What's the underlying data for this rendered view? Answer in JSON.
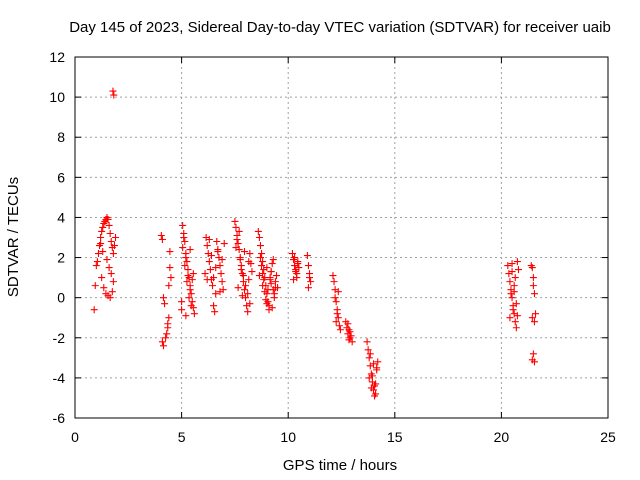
{
  "chart_data": {
    "type": "scatter",
    "title": "Day 145 of 2023, Sidereal Day-to-day VTEC variation (SDTVAR) for receiver uaib",
    "xlabel": "GPS time / hours",
    "ylabel": "SDTVAR / TECUs",
    "xlim": [
      0,
      25
    ],
    "ylim": [
      -6,
      12
    ],
    "xticks": [
      "0",
      "5",
      "10",
      "15",
      "20",
      "25"
    ],
    "yticks": [
      "-6",
      "-4",
      "-2",
      "0",
      "2",
      "4",
      "6",
      "8",
      "10",
      "12"
    ],
    "grid": true,
    "marker": "+",
    "color": "#ff0000",
    "series": [
      {
        "name": "SDTVAR",
        "x": [
          0.9,
          0.95,
          1.0,
          1.05,
          1.1,
          1.15,
          1.2,
          1.25,
          1.3,
          1.35,
          1.4,
          1.45,
          1.5,
          1.55,
          1.6,
          1.65,
          1.7,
          1.75,
          1.8,
          1.85,
          1.9,
          1.25,
          1.35,
          1.45,
          1.55,
          1.65,
          1.75,
          1.2,
          1.3,
          1.5,
          1.6,
          1.7,
          1.8,
          1.78,
          1.82,
          4.05,
          4.1,
          4.15,
          4.2,
          4.1,
          4.15,
          4.25,
          4.35,
          4.4,
          4.45,
          4.5,
          4.4,
          4.3,
          4.35,
          4.45,
          5.0,
          5.05,
          5.1,
          5.15,
          5.2,
          5.25,
          5.3,
          5.35,
          5.4,
          5.45,
          5.5,
          5.55,
          5.6,
          5.05,
          5.15,
          5.25,
          5.35,
          5.45,
          5.55,
          5.1,
          5.2,
          5.3,
          5.4,
          5.5,
          5.0,
          5.2,
          5.4,
          6.1,
          6.15,
          6.2,
          6.25,
          6.3,
          6.35,
          6.4,
          6.45,
          6.5,
          6.55,
          6.6,
          6.65,
          6.7,
          6.75,
          6.8,
          6.85,
          6.9,
          6.95,
          7.0,
          6.2,
          6.4,
          6.6,
          6.8,
          6.3,
          6.5,
          6.7,
          6.9,
          7.5,
          7.55,
          7.6,
          7.65,
          7.7,
          7.75,
          7.8,
          7.85,
          7.9,
          7.95,
          8.0,
          8.05,
          8.1,
          8.15,
          8.2,
          8.25,
          8.3,
          7.6,
          7.8,
          8.0,
          8.2,
          7.7,
          7.9,
          8.1,
          7.55,
          7.75,
          7.95,
          8.15,
          7.65,
          7.85,
          8.6,
          8.65,
          8.7,
          8.75,
          8.8,
          8.85,
          8.9,
          8.95,
          9.0,
          9.05,
          9.1,
          9.15,
          9.2,
          9.25,
          9.3,
          9.35,
          9.4,
          9.45,
          9.5,
          8.7,
          8.8,
          8.9,
          9.0,
          9.1,
          9.2,
          9.3,
          8.75,
          8.85,
          8.95,
          9.05,
          9.15,
          9.25,
          9.35,
          8.65,
          8.8,
          9.0,
          9.2,
          9.4,
          10.2,
          10.25,
          10.3,
          10.35,
          10.4,
          10.45,
          10.5,
          10.3,
          10.4,
          10.25,
          10.35,
          10.45,
          10.9,
          10.95,
          11.0,
          11.05,
          10.95,
          11.0,
          12.1,
          12.15,
          12.2,
          12.25,
          12.3,
          12.35,
          12.4,
          12.45,
          12.2,
          12.3,
          12.25,
          12.35,
          12.7,
          12.75,
          12.8,
          12.85,
          12.9,
          12.95,
          13.0,
          12.8,
          12.9,
          12.85,
          13.7,
          13.75,
          13.8,
          13.85,
          13.9,
          13.95,
          14.0,
          14.05,
          14.1,
          14.15,
          14.2,
          13.8,
          13.9,
          14.0,
          14.1,
          13.85,
          13.95,
          14.05,
          14.15,
          20.3,
          20.35,
          20.4,
          20.45,
          20.5,
          20.55,
          20.6,
          20.65,
          20.7,
          20.75,
          20.8,
          20.4,
          20.5,
          20.6,
          20.7,
          20.45,
          20.55,
          20.65,
          20.75,
          20.5,
          20.6,
          21.4,
          21.45,
          21.5,
          21.55,
          21.6,
          21.45,
          21.55,
          21.5,
          21.45,
          21.55,
          21.5
        ],
        "y": [
          -0.6,
          0.6,
          1.6,
          1.8,
          2.2,
          2.6,
          3.0,
          3.3,
          3.5,
          3.7,
          3.8,
          3.9,
          4.0,
          3.9,
          3.6,
          3.2,
          2.8,
          2.5,
          2.2,
          2.6,
          3.0,
          1.0,
          0.5,
          0.2,
          0.1,
          0.0,
          0.3,
          2.7,
          2.3,
          1.9,
          1.5,
          1.2,
          0.8,
          10.3,
          10.1,
          3.1,
          2.9,
          0.0,
          -0.3,
          -2.2,
          -2.4,
          -2.0,
          -1.5,
          -1.0,
          2.3,
          1.0,
          0.6,
          -1.8,
          -1.3,
          1.5,
          -0.6,
          3.6,
          3.2,
          2.8,
          2.2,
          1.8,
          1.4,
          1.0,
          0.6,
          0.2,
          -0.2,
          -0.5,
          -0.8,
          2.5,
          1.6,
          0.8,
          0.0,
          -0.4,
          1.2,
          3.0,
          2.0,
          1.1,
          0.4,
          0.9,
          -0.2,
          -0.9,
          2.4,
          1.2,
          3.0,
          2.6,
          2.2,
          1.8,
          1.4,
          0.9,
          0.6,
          -0.4,
          -0.7,
          0.2,
          2.8,
          2.4,
          2.0,
          1.6,
          1.2,
          0.8,
          0.4,
          2.7,
          0.9,
          2.1,
          1.5,
          0.3,
          2.9,
          1.0,
          2.3,
          1.9,
          3.8,
          3.5,
          3.1,
          2.7,
          2.4,
          2.0,
          1.6,
          1.2,
          0.8,
          0.4,
          0.0,
          -0.4,
          -0.7,
          0.9,
          2.2,
          1.7,
          1.3,
          2.9,
          1.4,
          0.6,
          -0.3,
          3.3,
          1.1,
          0.2,
          2.5,
          1.9,
          2.3,
          1.8,
          0.5,
          0.1,
          3.3,
          3.0,
          2.6,
          2.2,
          1.8,
          1.4,
          1.0,
          0.6,
          0.2,
          -0.2,
          -0.6,
          0.9,
          1.3,
          1.7,
          0.4,
          0.0,
          0.8,
          1.1,
          0.5,
          2.0,
          1.2,
          0.3,
          1.5,
          -0.4,
          0.7,
          1.9,
          1.6,
          0.9,
          -0.1,
          0.4,
          1.0,
          -0.5,
          0.2,
          1.1,
          0.6,
          -0.3,
          1.3,
          0.5,
          2.2,
          1.9,
          1.6,
          1.3,
          1.0,
          1.7,
          1.5,
          2.0,
          1.2,
          0.9,
          1.4,
          1.8,
          2.1,
          1.6,
          1.2,
          0.8,
          0.5,
          1.0,
          1.1,
          0.8,
          0.4,
          -0.2,
          -0.6,
          -1.0,
          -1.4,
          -1.6,
          0.0,
          -0.8,
          -1.2,
          0.3,
          -1.2,
          -1.5,
          -1.8,
          -2.1,
          -1.7,
          -1.9,
          -2.2,
          -1.3,
          -2.0,
          -1.6,
          -2.2,
          -2.6,
          -3.0,
          -3.4,
          -3.8,
          -4.2,
          -4.6,
          -4.9,
          -4.3,
          -3.6,
          -3.2,
          -4.0,
          -4.5,
          -3.3,
          -4.8,
          -2.8,
          -3.9,
          -4.4,
          -3.5,
          1.6,
          1.2,
          0.8,
          0.4,
          0.0,
          -0.4,
          -0.8,
          -1.2,
          -1.5,
          1.8,
          1.4,
          -1.0,
          1.7,
          0.6,
          -0.3,
          0.2,
          -0.6,
          1.0,
          -0.9,
          1.3,
          0.3,
          1.6,
          1.5,
          0.6,
          0.2,
          -0.8,
          -1.0,
          -1.2,
          -2.8,
          -3.1,
          -3.2,
          1.0
        ]
      }
    ]
  }
}
